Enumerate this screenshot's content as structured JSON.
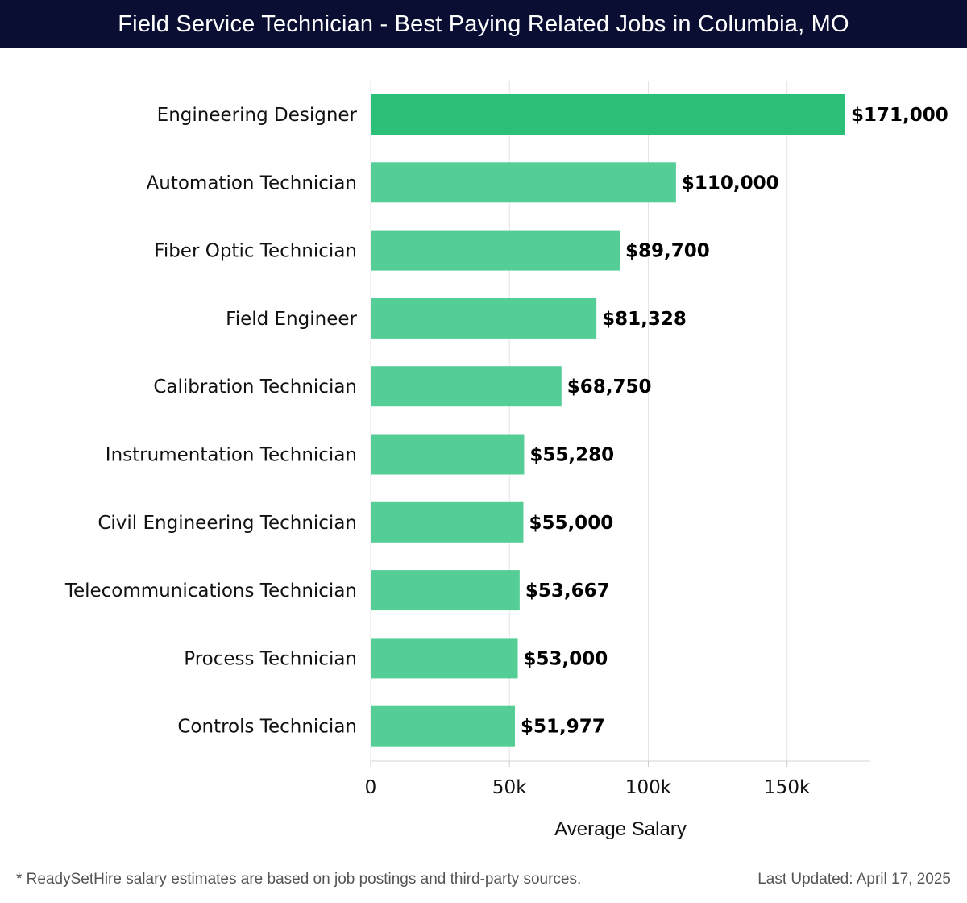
{
  "header": {
    "title": "Field Service Technician - Best Paying Related Jobs in Columbia, MO"
  },
  "chart_data": {
    "type": "bar",
    "orientation": "horizontal",
    "title": "Field Service Technician - Best Paying Related Jobs in Columbia, MO",
    "xlabel": "Average Salary",
    "ylabel": "",
    "xlim": [
      0,
      180000
    ],
    "xticks": [
      0,
      50000,
      100000,
      150000
    ],
    "xtick_labels": [
      "0",
      "50k",
      "100k",
      "150k"
    ],
    "grid": true,
    "categories": [
      "Engineering Designer",
      "Automation Technician",
      "Fiber Optic Technician",
      "Field Engineer",
      "Calibration Technician",
      "Instrumentation Technician",
      "Civil Engineering Technician",
      "Telecommunications Technician",
      "Process Technician",
      "Controls Technician"
    ],
    "values": [
      171000,
      110000,
      89700,
      81328,
      68750,
      55280,
      55000,
      53667,
      53000,
      51977
    ],
    "value_labels": [
      "$171,000",
      "$110,000",
      "$89,700",
      "$81,328",
      "$68,750",
      "$55,280",
      "$55,000",
      "$53,667",
      "$53,000",
      "$51,977"
    ],
    "colors": {
      "top_bar": "#2bbf78",
      "bar": "#55cd96",
      "label": "#000000",
      "grid": "#e3e3e3"
    }
  },
  "footer": {
    "note": "* ReadySetHire salary estimates are based on job postings and third-party sources.",
    "updated": "Last Updated: April 17, 2025"
  }
}
